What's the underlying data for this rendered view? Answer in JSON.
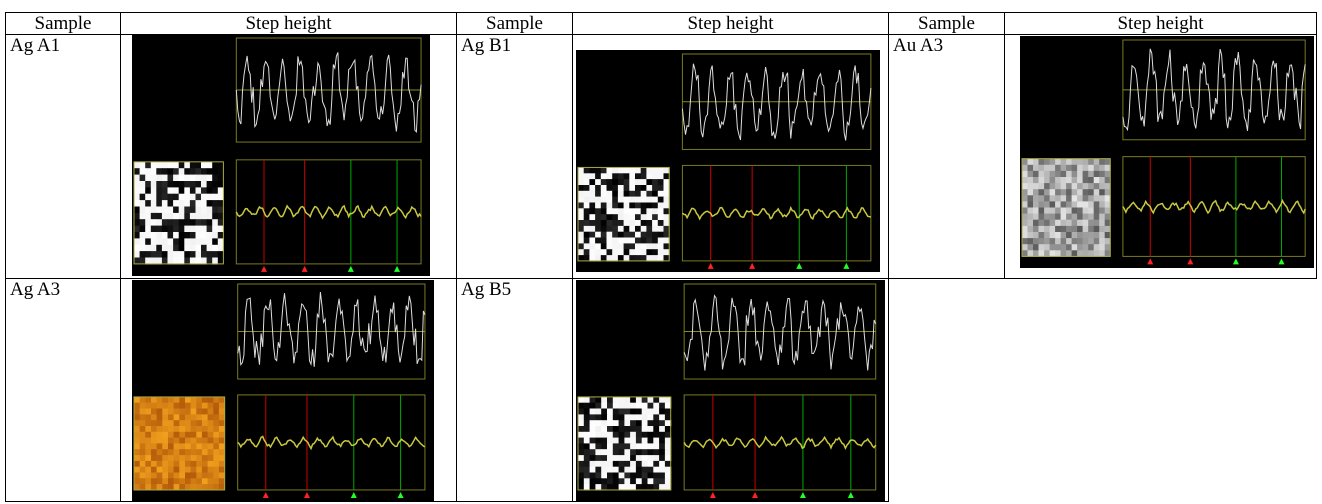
{
  "table": {
    "header": [
      "Sample",
      "Step height",
      "Sample",
      "Step height",
      "Sample",
      "Step height"
    ],
    "rows": [
      [
        "Ag A1",
        "Ag B1",
        "Au A3"
      ],
      [
        "Ag A3",
        "Ag B5"
      ]
    ]
  }
}
